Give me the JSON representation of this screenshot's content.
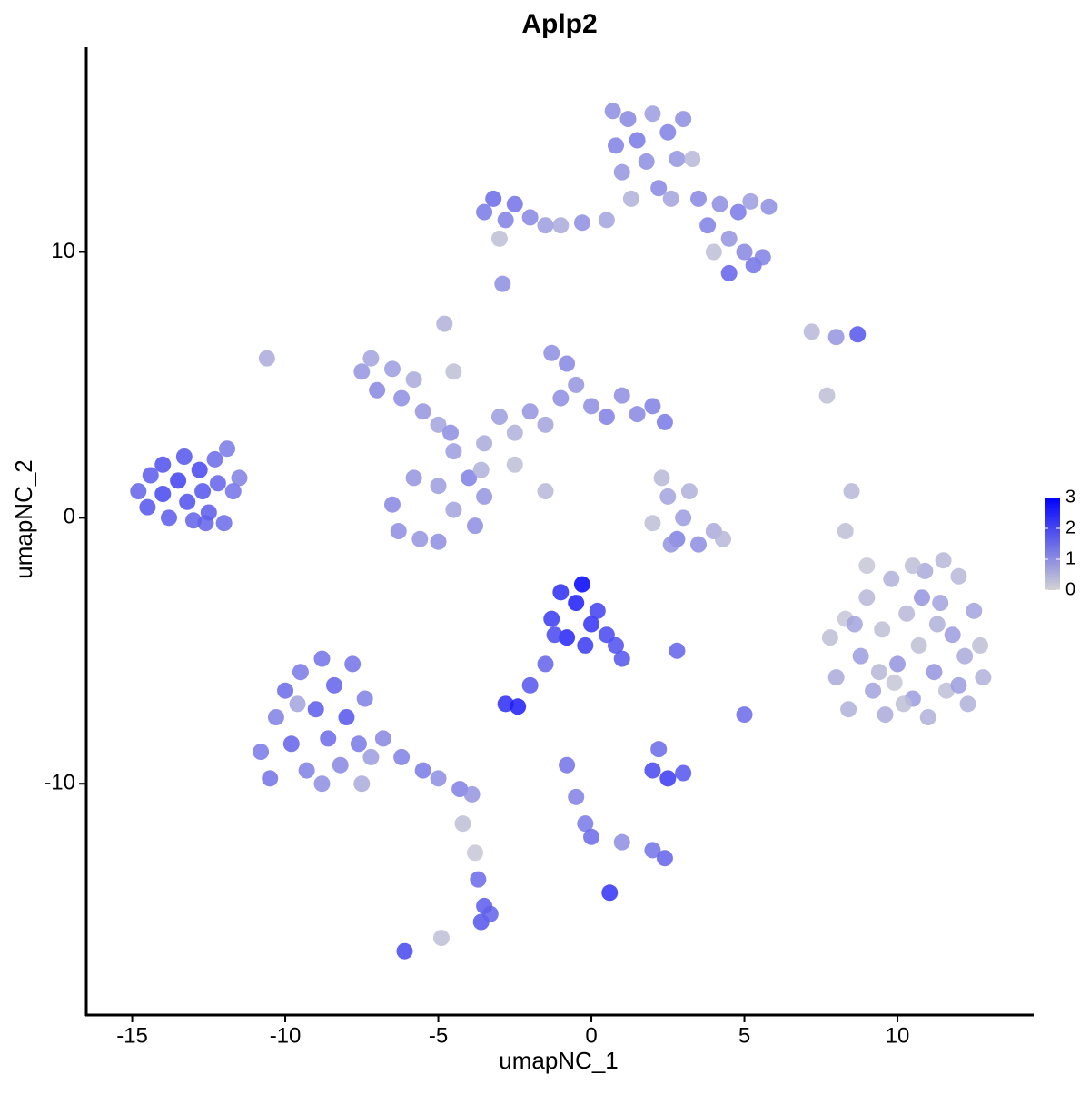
{
  "chart_data": {
    "type": "scatter",
    "title": "Aplp2",
    "x_label": "umapNC_1",
    "y_label": "umapNC_2",
    "xlim": [
      -16.5,
      14.45
    ],
    "ylim": [
      -18.7,
      17.7
    ],
    "xticks": [
      -15,
      -10,
      -5,
      0,
      5,
      10
    ],
    "yticks": [
      -10,
      0,
      10
    ],
    "colorbar": {
      "lim": [
        0,
        3
      ],
      "ticks": [
        0,
        1,
        2,
        3
      ],
      "low_color": "#d3d3d3",
      "high_color": "#0000ff"
    },
    "series": [
      {
        "x": [
          -14.8,
          -14.5,
          -14.4,
          -14.0,
          -14.0,
          -13.8,
          -13.5,
          -13.3,
          -13.2,
          -13.0,
          -12.8,
          -12.7,
          -12.5,
          -12.3,
          -12.2,
          -12.0,
          -11.9,
          -11.7,
          -11.5,
          -12.6,
          -7.5,
          -7.2,
          -7.0,
          -6.5,
          -6.2,
          -5.8,
          -5.5,
          -5.0,
          -4.6,
          -4.8,
          -4.5,
          -6.5,
          -6.3,
          -5.8,
          -5.6,
          -5.0,
          -5.0,
          -4.5,
          -4.0,
          -3.8,
          -3.5,
          -4.5,
          -3.5,
          -3.0,
          -2.5,
          -2.0,
          -1.5,
          -1.0,
          -0.8,
          -0.5,
          0,
          0.5,
          1.0,
          1.5,
          2.0,
          2.4,
          -1.3,
          -1.5,
          -2.5,
          -3.6,
          -3.5,
          -3.2,
          -2.8,
          -2.5,
          -2.0,
          -1.5,
          -1.0,
          -0.3,
          0.5,
          -3.0,
          0.7,
          0.8,
          1.0,
          1.2,
          1.5,
          1.8,
          2.0,
          2.2,
          2.5,
          2.8,
          2.6,
          3.0,
          1.3,
          3.3,
          3.5,
          3.8,
          4.2,
          4.5,
          4.8,
          5.0,
          5.3,
          4.5,
          5.6,
          5.8,
          5.2,
          4.0,
          7.8,
          8.0,
          8.3,
          8.4,
          8.8,
          9.0,
          9.2,
          9.5,
          9.6,
          9.8,
          10.0,
          10.3,
          10.5,
          10.7,
          10.9,
          11.0,
          11.2,
          11.4,
          11.6,
          11.8,
          12.0,
          12.2,
          12.3,
          12.5,
          12.7,
          12.8,
          9.0,
          10.5,
          11.5,
          8.6,
          9.4,
          10.2,
          11.3,
          12.0,
          10.8,
          9.9,
          -10.8,
          -10.5,
          -10.3,
          -10.0,
          -9.8,
          -9.5,
          -9.3,
          -9.0,
          -8.8,
          -8.6,
          -8.4,
          -8.2,
          -8.0,
          -7.8,
          -7.6,
          -7.4,
          -7.2,
          -7.5,
          -6.8,
          -6.2,
          -5.5,
          -5.0,
          -4.3,
          -3.9,
          -4.2,
          -3.8,
          -3.7,
          -3.5,
          -3.6,
          -3.3,
          -8.8,
          -9.6,
          -1.3,
          -1.0,
          -0.8,
          -0.5,
          -0.3,
          0,
          0.2,
          0.5,
          0.8,
          1.0,
          -0.2,
          -1.2,
          -1.5,
          -2.0,
          -2.8,
          -2.4,
          2.0,
          2.5,
          2.8,
          3.2,
          3.5,
          4.0,
          4.3,
          2.6,
          3.0,
          2.3,
          2.0,
          2.5,
          3.0,
          2.2,
          -0.8,
          -0.5,
          -0.2,
          0,
          1.0,
          2.0,
          2.4,
          0.6,
          -6.1,
          -4.9,
          8.7,
          8.0,
          7.2,
          5.0,
          2.8,
          -2.9,
          -10.6,
          8.3,
          8.5,
          7.7
        ],
        "y": [
          1.0,
          0.4,
          1.6,
          2.0,
          0.9,
          0.0,
          1.4,
          2.3,
          0.6,
          -0.1,
          1.8,
          1.0,
          0.2,
          2.2,
          1.3,
          -0.2,
          2.6,
          1.0,
          1.5,
          -0.2,
          5.5,
          6.0,
          4.8,
          5.6,
          4.5,
          5.2,
          4.0,
          3.5,
          3.2,
          7.3,
          5.5,
          0.5,
          -0.5,
          1.5,
          -0.8,
          1.2,
          -0.9,
          0.3,
          1.5,
          -0.3,
          0.8,
          2.5,
          2.8,
          3.8,
          3.2,
          4.0,
          3.5,
          4.5,
          5.8,
          5.0,
          4.2,
          3.8,
          4.6,
          3.9,
          4.2,
          3.6,
          6.2,
          1.0,
          2.0,
          1.8,
          11.5,
          12.0,
          11.2,
          11.8,
          11.3,
          11.0,
          11.0,
          11.1,
          11.2,
          10.5,
          15.3,
          14.0,
          13.0,
          15.0,
          14.2,
          13.4,
          15.2,
          12.4,
          14.5,
          13.5,
          12.0,
          15.0,
          12.0,
          13.5,
          12.0,
          11.0,
          11.8,
          10.5,
          11.5,
          10.0,
          9.5,
          9.2,
          9.8,
          11.7,
          11.9,
          10.0,
          -4.5,
          -6.0,
          -3.8,
          -7.2,
          -5.2,
          -3.0,
          -6.5,
          -4.2,
          -7.4,
          -2.3,
          -5.5,
          -3.6,
          -6.8,
          -4.8,
          -2.0,
          -7.5,
          -5.8,
          -3.2,
          -6.5,
          -4.4,
          -2.2,
          -5.2,
          -7.0,
          -3.5,
          -4.8,
          -6.0,
          -1.8,
          -1.8,
          -1.6,
          -4.0,
          -5.8,
          -7.0,
          -4.0,
          -6.3,
          -3.0,
          -6.2,
          -8.8,
          -9.8,
          -7.5,
          -6.5,
          -8.5,
          -5.8,
          -9.5,
          -7.2,
          -5.3,
          -8.3,
          -6.3,
          -9.3,
          -7.5,
          -5.5,
          -8.5,
          -6.8,
          -9.0,
          -10.0,
          -8.3,
          -9.0,
          -9.5,
          -9.8,
          -10.2,
          -10.4,
          -11.5,
          -12.6,
          -13.6,
          -14.6,
          -15.2,
          -14.9,
          -10.0,
          -7.0,
          -3.8,
          -2.8,
          -4.5,
          -3.2,
          -2.5,
          -4.0,
          -3.5,
          -4.4,
          -4.8,
          -5.3,
          -4.8,
          -4.4,
          -5.5,
          -6.3,
          -7.0,
          -7.1,
          -0.2,
          0.8,
          -0.8,
          1.0,
          -1.0,
          -0.5,
          -0.8,
          -1.0,
          0.0,
          1.5,
          -9.5,
          -9.8,
          -9.6,
          -8.7,
          -9.3,
          -10.5,
          -11.5,
          -12.0,
          -12.2,
          -12.5,
          -12.8,
          -14.1,
          -16.3,
          -15.8,
          6.9,
          6.8,
          7.0,
          -7.4,
          -5.0,
          8.8,
          6.0,
          -0.5,
          1.0,
          4.6
        ],
        "values": [
          1.6,
          1.8,
          1.7,
          1.9,
          2.0,
          1.7,
          2.1,
          1.8,
          1.9,
          1.6,
          2.0,
          1.8,
          1.7,
          1.5,
          1.6,
          1.5,
          1.3,
          1.4,
          1.2,
          1.6,
          0.9,
          0.7,
          1.1,
          0.8,
          1.0,
          0.6,
          0.9,
          0.7,
          1.0,
          0.5,
          0.3,
          1.1,
          1.0,
          0.9,
          0.9,
          0.8,
          1.0,
          0.7,
          1.2,
          1.0,
          0.9,
          0.8,
          0.6,
          0.8,
          0.5,
          0.9,
          0.7,
          1.0,
          1.1,
          0.9,
          1.0,
          1.2,
          1.0,
          1.1,
          1.2,
          1.3,
          1.0,
          0.4,
          0.3,
          0.5,
          1.3,
          1.5,
          1.2,
          1.4,
          1.1,
          0.8,
          0.6,
          1.0,
          0.7,
          0.3,
          1.0,
          1.2,
          0.9,
          1.1,
          1.3,
          1.0,
          0.8,
          1.1,
          1.2,
          0.9,
          0.7,
          1.0,
          0.5,
          0.4,
          1.1,
          1.2,
          1.0,
          0.9,
          1.3,
          1.1,
          1.4,
          1.6,
          1.2,
          1.0,
          0.8,
          0.3,
          0.3,
          0.6,
          0.2,
          0.5,
          0.8,
          0.4,
          0.7,
          0.3,
          0.6,
          0.5,
          0.9,
          0.4,
          0.8,
          0.3,
          0.6,
          0.5,
          0.9,
          0.7,
          0.3,
          0.8,
          0.4,
          0.6,
          0.5,
          0.7,
          0.3,
          0.5,
          0.2,
          0.3,
          0.4,
          0.7,
          0.4,
          0.3,
          0.5,
          0.8,
          0.9,
          0.2,
          1.3,
          1.4,
          1.2,
          1.5,
          1.6,
          1.3,
          1.2,
          1.7,
          1.4,
          1.5,
          1.6,
          1.1,
          1.8,
          1.4,
          1.3,
          1.2,
          0.8,
          0.6,
          1.1,
          1.2,
          1.3,
          1.0,
          1.2,
          0.9,
          0.3,
          0.2,
          1.5,
          1.7,
          1.8,
          1.6,
          1.0,
          0.7,
          2.2,
          2.4,
          2.5,
          2.6,
          3.0,
          2.3,
          2.1,
          2.0,
          1.9,
          1.8,
          2.2,
          2.0,
          1.6,
          1.8,
          2.4,
          2.6,
          0.3,
          0.7,
          1.2,
          0.5,
          1.0,
          0.6,
          0.4,
          0.9,
          0.8,
          0.4,
          2.0,
          2.2,
          1.8,
          1.5,
          1.4,
          1.2,
          1.3,
          1.5,
          1.0,
          1.4,
          1.6,
          2.3,
          2.0,
          0.3,
          1.8,
          0.9,
          0.4,
          1.5,
          1.6,
          1.0,
          0.6,
          0.3,
          0.4,
          0.3
        ]
      }
    ]
  }
}
